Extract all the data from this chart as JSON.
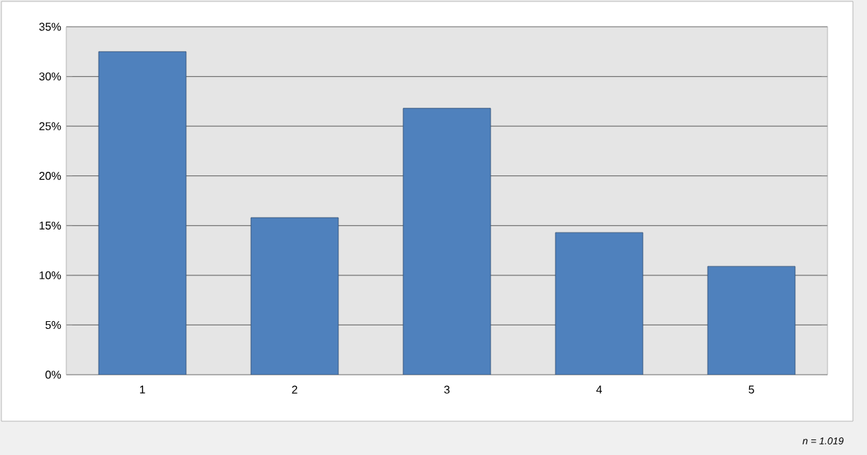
{
  "chart_data": {
    "type": "bar",
    "categories": [
      "1",
      "2",
      "3",
      "4",
      "5"
    ],
    "values": [
      32.5,
      15.8,
      26.8,
      14.3,
      10.9
    ],
    "color": "#4f81bd",
    "ylim": [
      0,
      35
    ],
    "yticks": [
      {
        "value": 0,
        "label": "0%"
      },
      {
        "value": 5,
        "label": "5%"
      },
      {
        "value": 10,
        "label": "10%"
      },
      {
        "value": 15,
        "label": "15%"
      },
      {
        "value": 20,
        "label": "20%"
      },
      {
        "value": 25,
        "label": "25%"
      },
      {
        "value": 30,
        "label": "30%"
      },
      {
        "value": 35,
        "label": "35%"
      }
    ],
    "grid": "y",
    "annotations": [
      "n = 1.019"
    ]
  }
}
